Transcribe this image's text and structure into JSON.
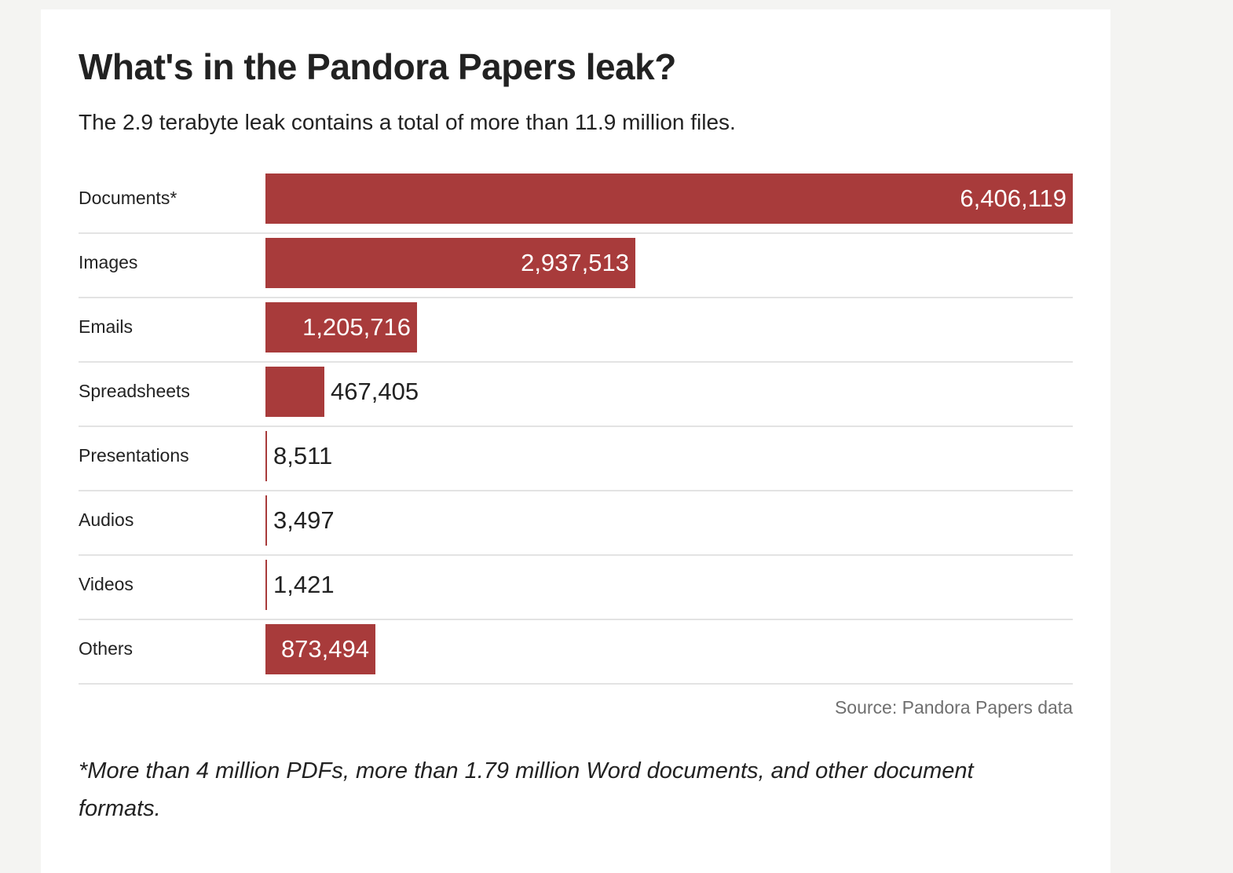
{
  "chart_data": {
    "type": "bar",
    "orientation": "horizontal",
    "title": "What's in the Pandora Papers leak?",
    "subtitle": "The 2.9 terabyte leak contains a total of more than 11.9 million files.",
    "categories": [
      "Documents*",
      "Images",
      "Emails",
      "Spreadsheets",
      "Presentations",
      "Audios",
      "Videos",
      "Others"
    ],
    "values": [
      6406119,
      2937513,
      1205716,
      467405,
      8511,
      3497,
      1421,
      873494
    ],
    "value_labels": [
      "6,406,119",
      "2,937,513",
      "1,205,716",
      "467,405",
      "8,511",
      "3,497",
      "1,421",
      "873,494"
    ],
    "xlim": [
      0,
      6406119
    ],
    "grid": false,
    "legend": "none",
    "source": "Source: Pandora Papers data",
    "footnote": "*More than 4 million PDFs, more than 1.79 million Word documents, and other document formats."
  },
  "colors": {
    "bar": "#a83b3b",
    "text": "#222222",
    "source_text": "#6f6f6f",
    "divider": "#e3e3e3"
  }
}
